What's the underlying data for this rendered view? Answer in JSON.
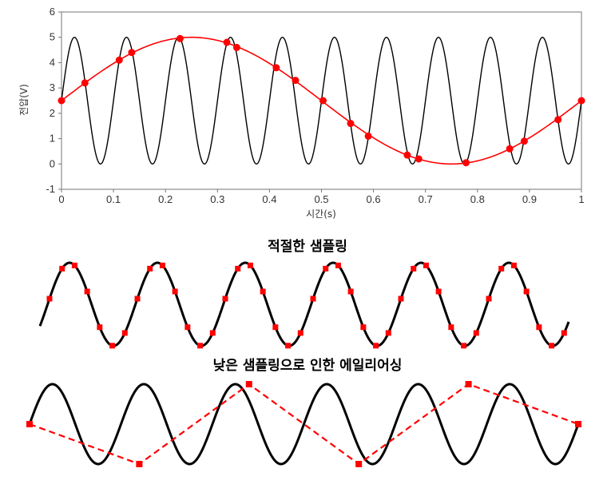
{
  "chart_data": [
    {
      "type": "line",
      "xlabel": "시간(s)",
      "ylabel": "전압(V)",
      "xlim": [
        0,
        1
      ],
      "ylim": [
        -1,
        6
      ],
      "x_ticks": [
        "0",
        "0.1",
        "0.2",
        "0.3",
        "0.4",
        "0.5",
        "0.6",
        "0.7",
        "0.8",
        "0.9",
        "1"
      ],
      "y_ticks": [
        "-1",
        "0",
        "1",
        "2",
        "3",
        "4",
        "5",
        "6"
      ],
      "grid": false,
      "series": [
        {
          "role": "signal",
          "color": "#000000",
          "function": "2.5 + 2.5*sin(2*pi*10*t)",
          "frequency_hz": 10,
          "offset": 2.5,
          "amplitude": 2.5
        },
        {
          "role": "samples",
          "color": "#ff0000",
          "marker": "circle",
          "x": [
            0.0,
            0.045,
            0.111,
            0.135,
            0.228,
            0.318,
            0.337,
            0.413,
            0.45,
            0.503,
            0.556,
            0.59,
            0.665,
            0.687,
            0.778,
            0.862,
            0.89,
            0.955,
            1.0
          ],
          "y": [
            2.5,
            3.2,
            4.1,
            4.4,
            4.95,
            4.8,
            4.6,
            3.8,
            3.3,
            2.5,
            1.6,
            1.1,
            0.35,
            0.2,
            0.05,
            0.6,
            0.9,
            1.75,
            2.5
          ]
        }
      ]
    },
    {
      "type": "line",
      "title": "적절한 샘플링",
      "series": [
        {
          "role": "signal",
          "color": "#000000",
          "cycles": 6
        },
        {
          "role": "samples",
          "color": "#ff0000",
          "marker": "square",
          "samples_per_cycle": 7
        }
      ]
    },
    {
      "type": "line",
      "title": "낮은 샘플링으로 인한 에일리어싱",
      "series": [
        {
          "role": "signal",
          "color": "#000000",
          "cycles": 6
        },
        {
          "role": "samples",
          "color": "#ff0000",
          "marker": "square",
          "line_style": "dashed",
          "y": [
            0,
            -1,
            1,
            -1,
            1,
            0
          ]
        }
      ]
    }
  ]
}
